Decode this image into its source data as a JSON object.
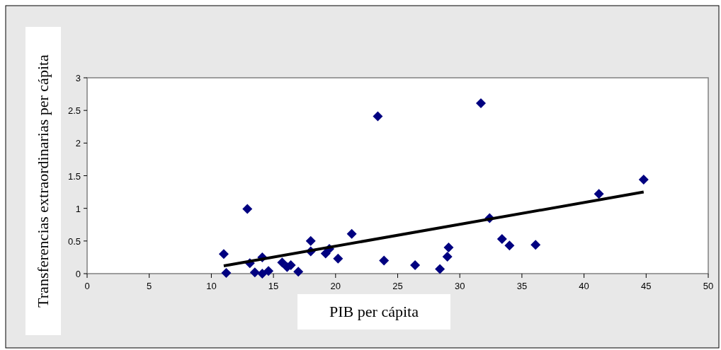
{
  "chart_data": {
    "type": "scatter",
    "xlabel": "PIB per cápita",
    "ylabel": "Transferencias extraordinarias per cápita",
    "xlim": [
      0,
      50
    ],
    "xticks": [
      0,
      5,
      10,
      15,
      20,
      25,
      30,
      35,
      40,
      45,
      50
    ],
    "ylim": [
      0,
      3
    ],
    "yticks": [
      0,
      0.5,
      1,
      1.5,
      2,
      2.5,
      3
    ],
    "grid": false,
    "series": [
      {
        "marker": "diamond",
        "color": "#000080",
        "x": [
          11.0,
          11.2,
          12.9,
          13.1,
          13.5,
          14.1,
          14.1,
          14.6,
          15.7,
          16.1,
          16.4,
          17.0,
          18.0,
          18.0,
          19.2,
          19.5,
          20.2,
          21.3,
          23.4,
          23.9,
          26.4,
          28.4,
          29.0,
          29.1,
          31.7,
          32.4,
          33.4,
          34.0,
          36.1,
          41.2,
          44.8
        ],
        "values": [
          0.3,
          0.01,
          0.99,
          0.16,
          0.02,
          0.25,
          0.0,
          0.04,
          0.17,
          0.1,
          0.13,
          0.03,
          0.34,
          0.5,
          0.31,
          0.38,
          0.23,
          0.61,
          2.41,
          0.2,
          0.13,
          0.07,
          0.26,
          0.4,
          2.61,
          0.85,
          0.53,
          0.43,
          0.44,
          1.22,
          1.44
        ]
      },
      {
        "type": "line",
        "color": "#000000",
        "x": [
          11.0,
          44.8
        ],
        "values": [
          0.12,
          1.25
        ]
      }
    ]
  }
}
